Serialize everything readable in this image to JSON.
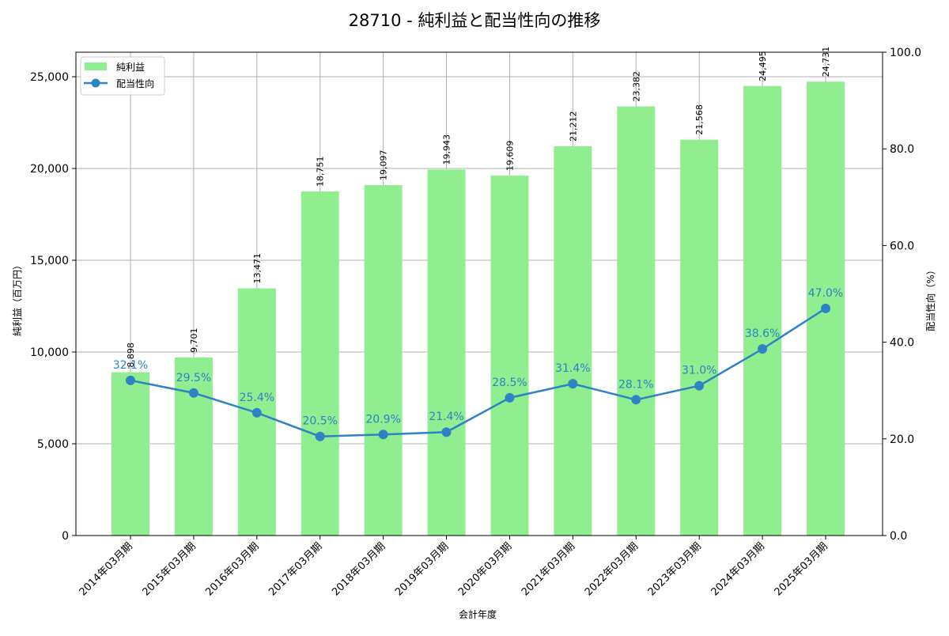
{
  "title": "28710 - 純利益と配当性向の推移",
  "colors": {
    "bar": "#90ee90",
    "line": "#2e83c4",
    "grid": "#b0b0b0",
    "axis": "#000000",
    "text": "#000000"
  },
  "legend": [
    {
      "label": "純利益",
      "type": "bar"
    },
    {
      "label": "配当性向",
      "type": "line"
    }
  ],
  "axes": {
    "xlabel": "会計年度",
    "ylabel_left": "純利益（百万円）",
    "ylabel_right": "配当性向（%）",
    "left_ticks": [
      "0",
      "5,000",
      "10,000",
      "15,000",
      "20,000",
      "25,000"
    ],
    "left_tick_values": [
      0,
      5000,
      10000,
      15000,
      20000,
      25000
    ],
    "right_ticks": [
      "0.0",
      "20.0",
      "40.0",
      "60.0",
      "80.0",
      "100.0"
    ],
    "right_tick_values": [
      0,
      20,
      40,
      60,
      80,
      100
    ]
  },
  "chart_data": {
    "type": "bar+line",
    "title": "28710 - 純利益と配当性向の推移",
    "xlabel": "会計年度",
    "ylabel": "純利益（百万円）",
    "ylabel_right": "配当性向（%）",
    "categories": [
      "2014年03月期",
      "2015年03月期",
      "2016年03月期",
      "2017年03月期",
      "2018年03月期",
      "2019年03月期",
      "2020年03月期",
      "2021年03月期",
      "2022年03月期",
      "2023年03月期",
      "2024年03月期",
      "2025年03月期"
    ],
    "series": [
      {
        "name": "純利益",
        "type": "bar",
        "axis": "left",
        "values": [
          8898,
          9701,
          13471,
          18751,
          19097,
          19943,
          19609,
          21212,
          23382,
          21568,
          24495,
          24731
        ],
        "labels": [
          "8,898",
          "9,701",
          "13,471",
          "18,751",
          "19,097",
          "19,943",
          "19,609",
          "21,212",
          "23,382",
          "21,568",
          "24,495",
          "24,731"
        ]
      },
      {
        "name": "配当性向",
        "type": "line",
        "axis": "right",
        "values": [
          32.1,
          29.5,
          25.4,
          20.5,
          20.9,
          21.4,
          28.5,
          31.4,
          28.1,
          31.0,
          38.6,
          47.0
        ],
        "labels": [
          "32.1%",
          "29.5%",
          "25.4%",
          "20.5%",
          "20.9%",
          "21.4%",
          "28.5%",
          "31.4%",
          "28.1%",
          "31.0%",
          "38.6%",
          "47.0%"
        ]
      }
    ],
    "ylim": [
      0,
      26336
    ],
    "ylim_right": [
      0,
      100
    ],
    "grid": true,
    "legend_position": "upper left"
  }
}
